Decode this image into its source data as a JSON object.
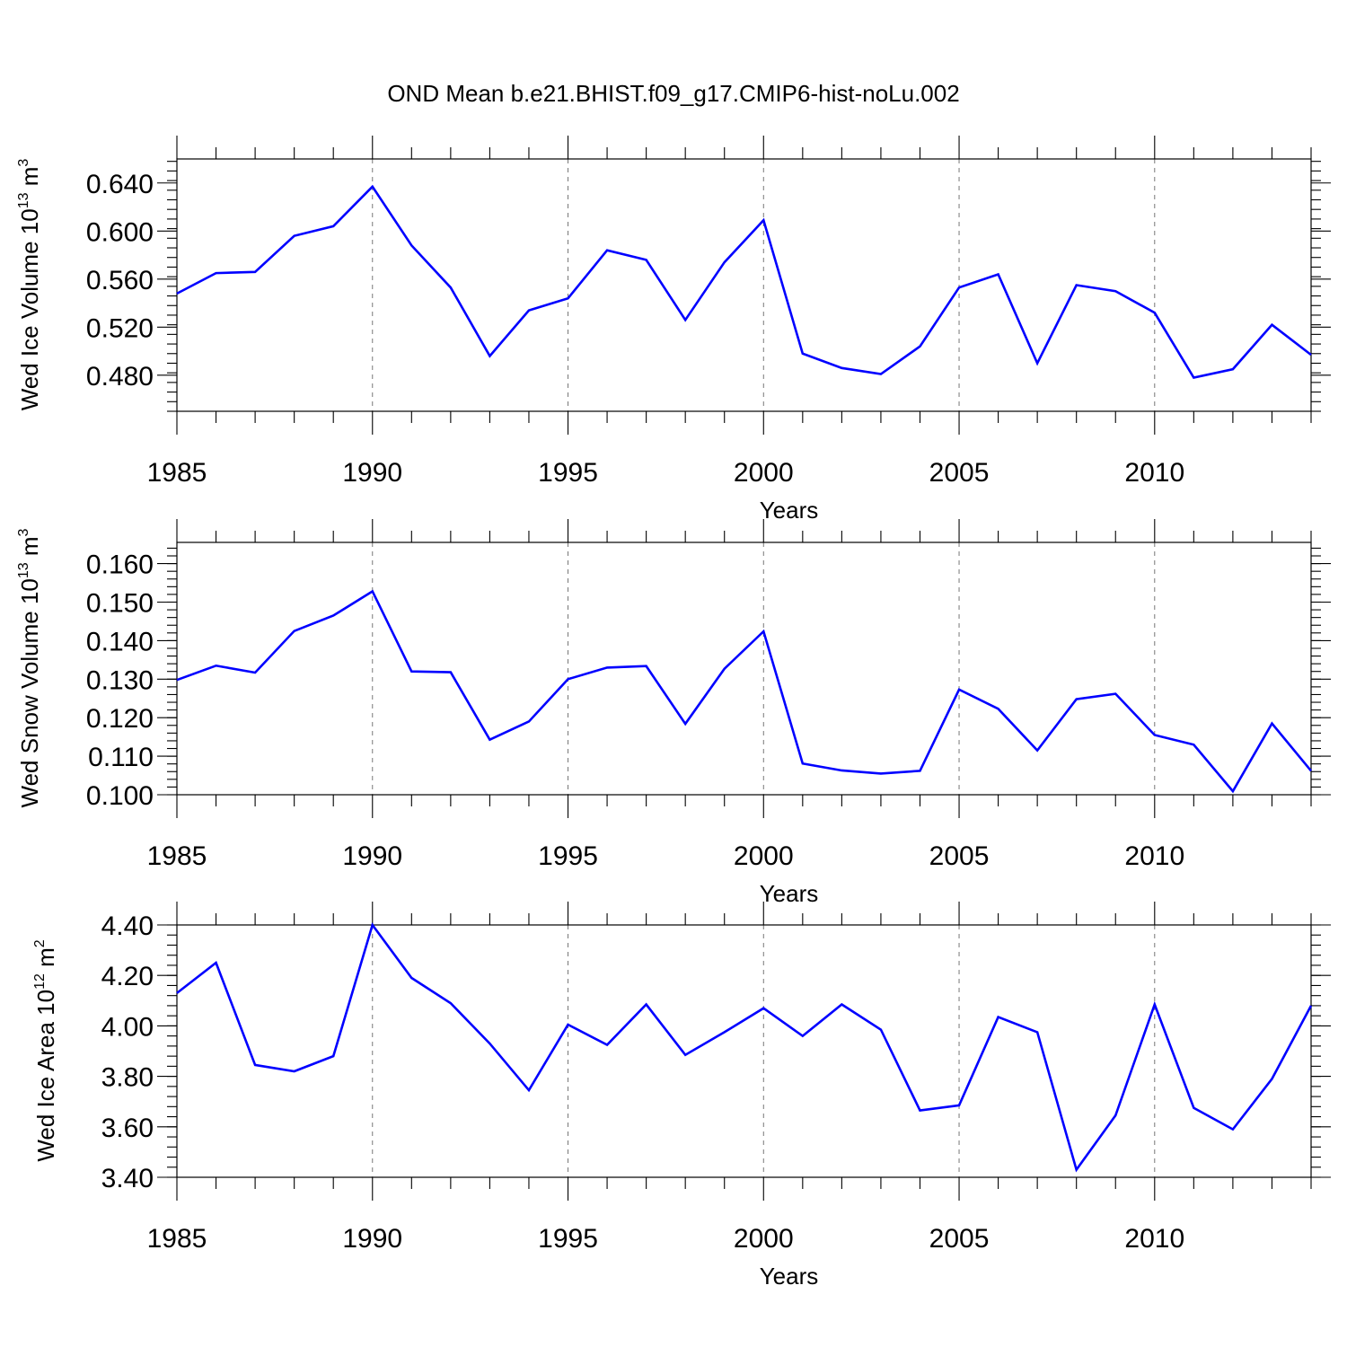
{
  "figure": {
    "title": "OND Mean b.e21.BHIST.f09_g17.CMIP6-hist-noLu.002",
    "line_color": "#0000ff"
  },
  "chart_data": [
    {
      "type": "line",
      "xlabel": "Years",
      "ylabel_base": "Wed Ice Volume 10",
      "ylabel_exp": "13",
      "ylabel_unit": " m",
      "ylabel_unit_exp": "3",
      "xlim": [
        1985,
        2014
      ],
      "ylim": [
        0.45,
        0.66
      ],
      "xticks": [
        1985,
        1990,
        1995,
        2000,
        2005,
        2010
      ],
      "xtick_labels": [
        "1985",
        "1990",
        "1995",
        "2000",
        "2005",
        "2010"
      ],
      "yticks": [
        0.48,
        0.52,
        0.56,
        0.6,
        0.64
      ],
      "ytick_labels": [
        "0.480",
        "0.520",
        "0.560",
        "0.600",
        "0.640"
      ],
      "y_minor_step": 0.008,
      "grid": "vertical-dashed",
      "x": [
        1985,
        1986,
        1987,
        1988,
        1989,
        1990,
        1991,
        1992,
        1993,
        1994,
        1995,
        1996,
        1997,
        1998,
        1999,
        2000,
        2001,
        2002,
        2003,
        2004,
        2005,
        2006,
        2007,
        2008,
        2009,
        2010,
        2011,
        2012,
        2013,
        2014
      ],
      "series": [
        {
          "values": [
            0.548,
            0.565,
            0.566,
            0.596,
            0.604,
            0.637,
            0.588,
            0.553,
            0.496,
            0.534,
            0.544,
            0.584,
            0.576,
            0.526,
            0.574,
            0.609,
            0.498,
            0.486,
            0.481,
            0.504,
            0.553,
            0.564,
            0.49,
            0.555,
            0.55,
            0.532,
            0.478,
            0.485,
            0.522,
            0.497
          ]
        }
      ]
    },
    {
      "type": "line",
      "xlabel": "Years",
      "ylabel_base": "Wed Snow Volume 10",
      "ylabel_exp": "13",
      "ylabel_unit": " m",
      "ylabel_unit_exp": "3",
      "xlim": [
        1985,
        2014
      ],
      "ylim": [
        0.1,
        0.1655
      ],
      "xticks": [
        1985,
        1990,
        1995,
        2000,
        2005,
        2010
      ],
      "xtick_labels": [
        "1985",
        "1990",
        "1995",
        "2000",
        "2005",
        "2010"
      ],
      "yticks": [
        0.1,
        0.11,
        0.12,
        0.13,
        0.14,
        0.15,
        0.16
      ],
      "ytick_labels": [
        "0.100",
        "0.110",
        "0.120",
        "0.130",
        "0.140",
        "0.150",
        "0.160"
      ],
      "y_minor_step": 0.002,
      "grid": "vertical-dashed",
      "x": [
        1985,
        1986,
        1987,
        1988,
        1989,
        1990,
        1991,
        1992,
        1993,
        1994,
        1995,
        1996,
        1997,
        1998,
        1999,
        2000,
        2001,
        2002,
        2003,
        2004,
        2005,
        2006,
        2007,
        2008,
        2009,
        2010,
        2011,
        2012,
        2013,
        2014
      ],
      "series": [
        {
          "values": [
            0.1298,
            0.1335,
            0.1317,
            0.1425,
            0.1465,
            0.1528,
            0.132,
            0.1318,
            0.1143,
            0.119,
            0.13,
            0.133,
            0.1334,
            0.1184,
            0.1327,
            0.1424,
            0.1081,
            0.1063,
            0.1055,
            0.1062,
            0.1273,
            0.1223,
            0.1115,
            0.1248,
            0.1262,
            0.1155,
            0.113,
            0.1009,
            0.1185,
            0.1062
          ]
        }
      ]
    },
    {
      "type": "line",
      "xlabel": "Years",
      "ylabel_base": "Wed Ice Area 10",
      "ylabel_exp": "12",
      "ylabel_unit": " m",
      "ylabel_unit_exp": "2",
      "xlim": [
        1985,
        2014
      ],
      "ylim": [
        3.4,
        4.4
      ],
      "xticks": [
        1985,
        1990,
        1995,
        2000,
        2005,
        2010
      ],
      "xtick_labels": [
        "1985",
        "1990",
        "1995",
        "2000",
        "2005",
        "2010"
      ],
      "yticks": [
        3.4,
        3.6,
        3.8,
        4.0,
        4.2,
        4.4
      ],
      "ytick_labels": [
        "3.40",
        "3.60",
        "3.80",
        "4.00",
        "4.20",
        "4.40"
      ],
      "y_minor_step": 0.04,
      "grid": "vertical-dashed",
      "x": [
        1985,
        1986,
        1987,
        1988,
        1989,
        1990,
        1991,
        1992,
        1993,
        1994,
        1995,
        1996,
        1997,
        1998,
        1999,
        2000,
        2001,
        2002,
        2003,
        2004,
        2005,
        2006,
        2007,
        2008,
        2009,
        2010,
        2011,
        2012,
        2013,
        2014
      ],
      "series": [
        {
          "values": [
            4.13,
            4.25,
            3.845,
            3.82,
            3.88,
            4.4,
            4.19,
            4.09,
            3.93,
            3.745,
            4.005,
            3.925,
            4.085,
            3.885,
            3.975,
            4.07,
            3.96,
            4.085,
            3.985,
            3.665,
            3.685,
            4.035,
            3.975,
            3.43,
            3.645,
            4.085,
            3.675,
            3.59,
            3.79,
            4.08
          ]
        }
      ]
    }
  ]
}
